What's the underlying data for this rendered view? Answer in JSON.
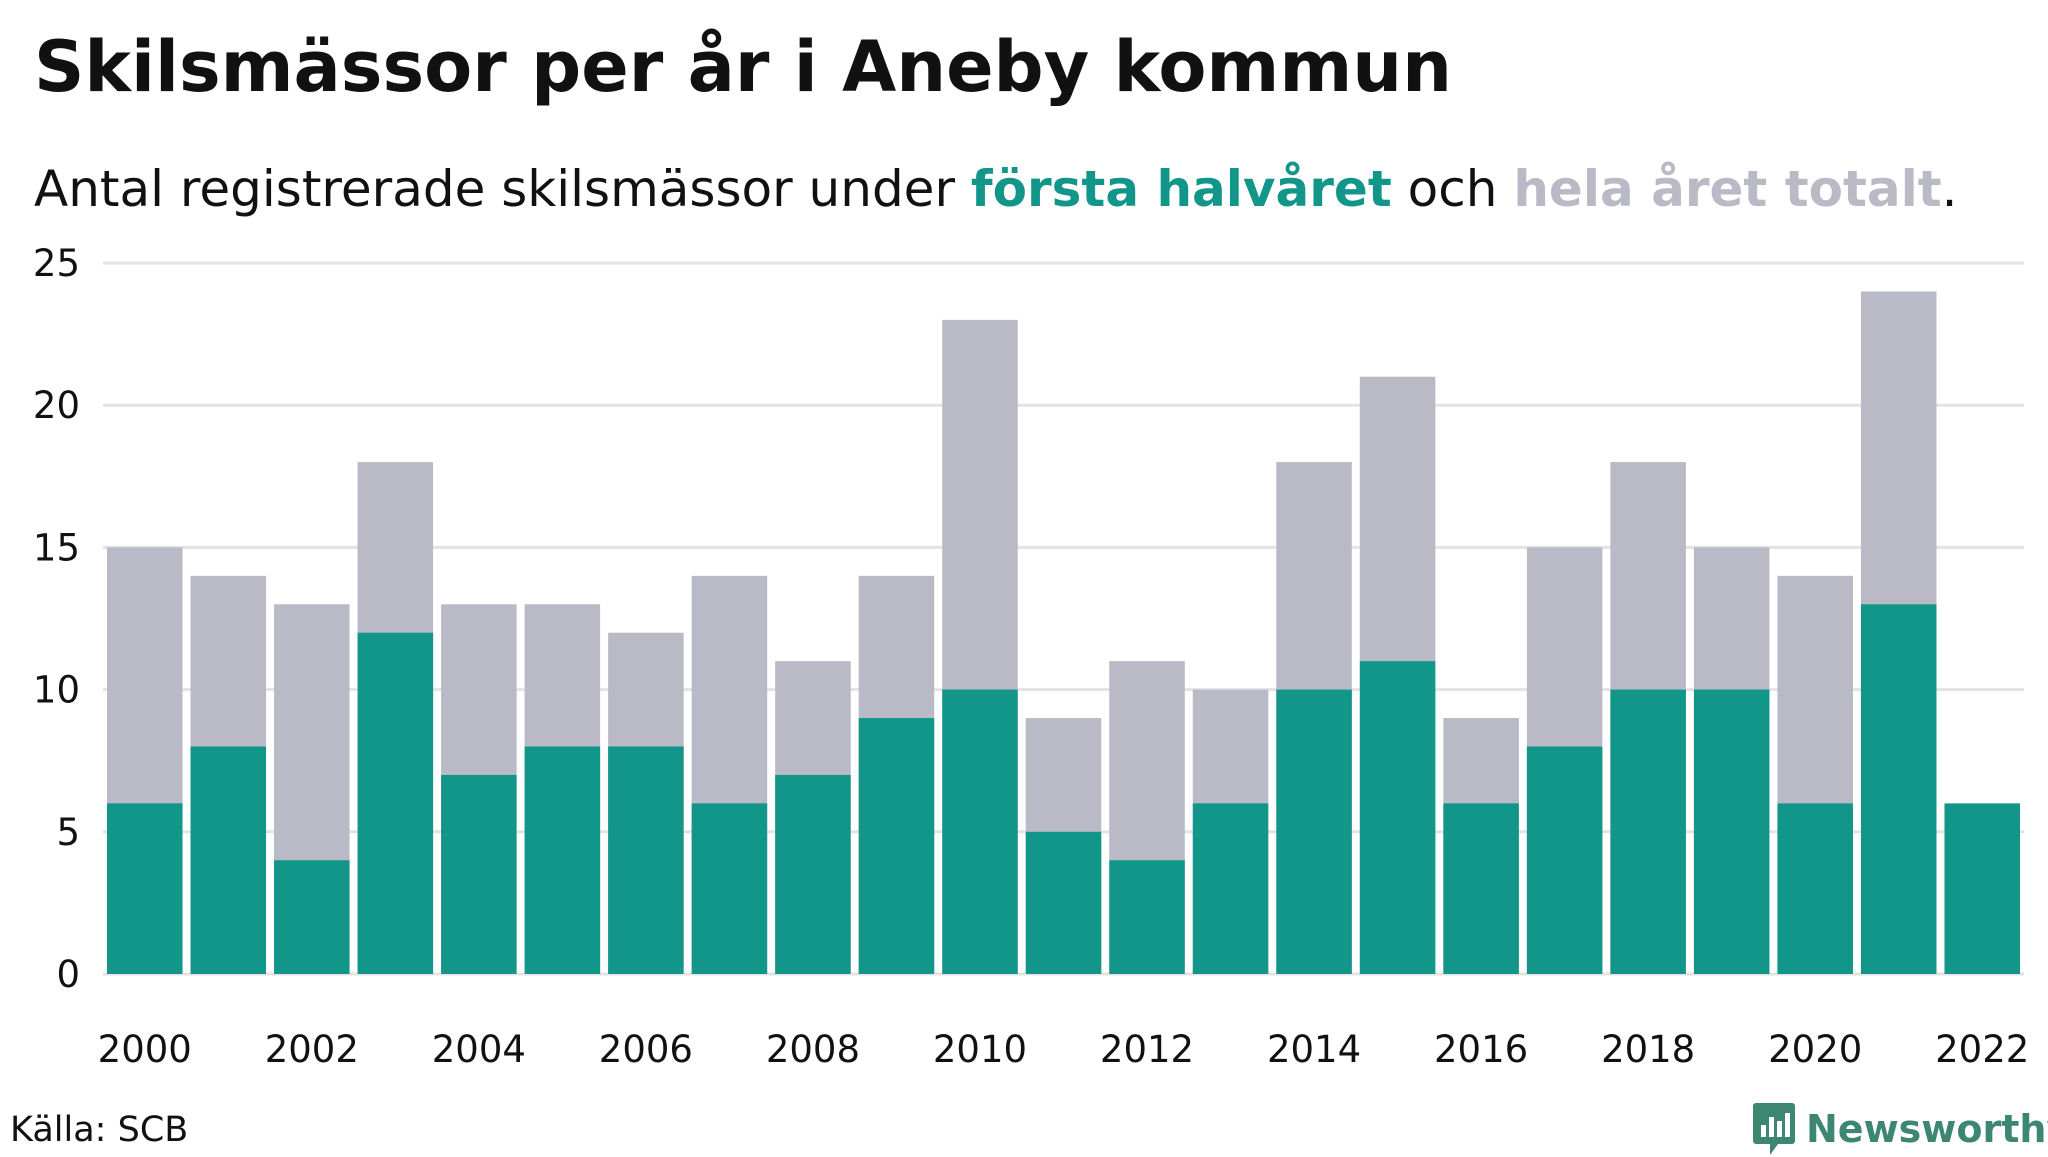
{
  "title": "Skilsmässor per år i Aneby kommun",
  "subtitle": {
    "prefix": "Antal registrerade skilsmässor under ",
    "first_half": "första halvåret",
    "middle": " och ",
    "full_year": "hela året totalt",
    "suffix": "."
  },
  "source": "Källa: SCB",
  "brand": {
    "name": "Newsworthy",
    "icon": "newsworthy-logo-icon"
  },
  "colors": {
    "first_half": "#13968a",
    "full_year": "#bab9c6",
    "grid": "#e3e3e6"
  },
  "chart_data": {
    "type": "bar",
    "categories": [
      "2000",
      "2001",
      "2002",
      "2003",
      "2004",
      "2005",
      "2006",
      "2007",
      "2008",
      "2009",
      "2010",
      "2011",
      "2012",
      "2013",
      "2014",
      "2015",
      "2016",
      "2017",
      "2018",
      "2019",
      "2020",
      "2021",
      "2022"
    ],
    "x_tick_labels": [
      "2000",
      "2002",
      "2004",
      "2006",
      "2008",
      "2010",
      "2012",
      "2014",
      "2016",
      "2018",
      "2020",
      "2022"
    ],
    "series": [
      {
        "name": "hela året totalt",
        "values": [
          15,
          14,
          13,
          18,
          13,
          13,
          12,
          14,
          11,
          14,
          23,
          9,
          11,
          10,
          18,
          21,
          9,
          15,
          18,
          15,
          14,
          24,
          null
        ]
      },
      {
        "name": "första halvåret",
        "values": [
          6,
          8,
          4,
          12,
          7,
          8,
          8,
          6,
          7,
          9,
          10,
          5,
          4,
          6,
          10,
          11,
          6,
          8,
          10,
          10,
          6,
          13,
          6
        ]
      }
    ],
    "ylim": [
      0,
      25
    ],
    "y_ticks": [
      0,
      5,
      10,
      15,
      20,
      25
    ],
    "grid": true,
    "layout": "overlapping"
  }
}
